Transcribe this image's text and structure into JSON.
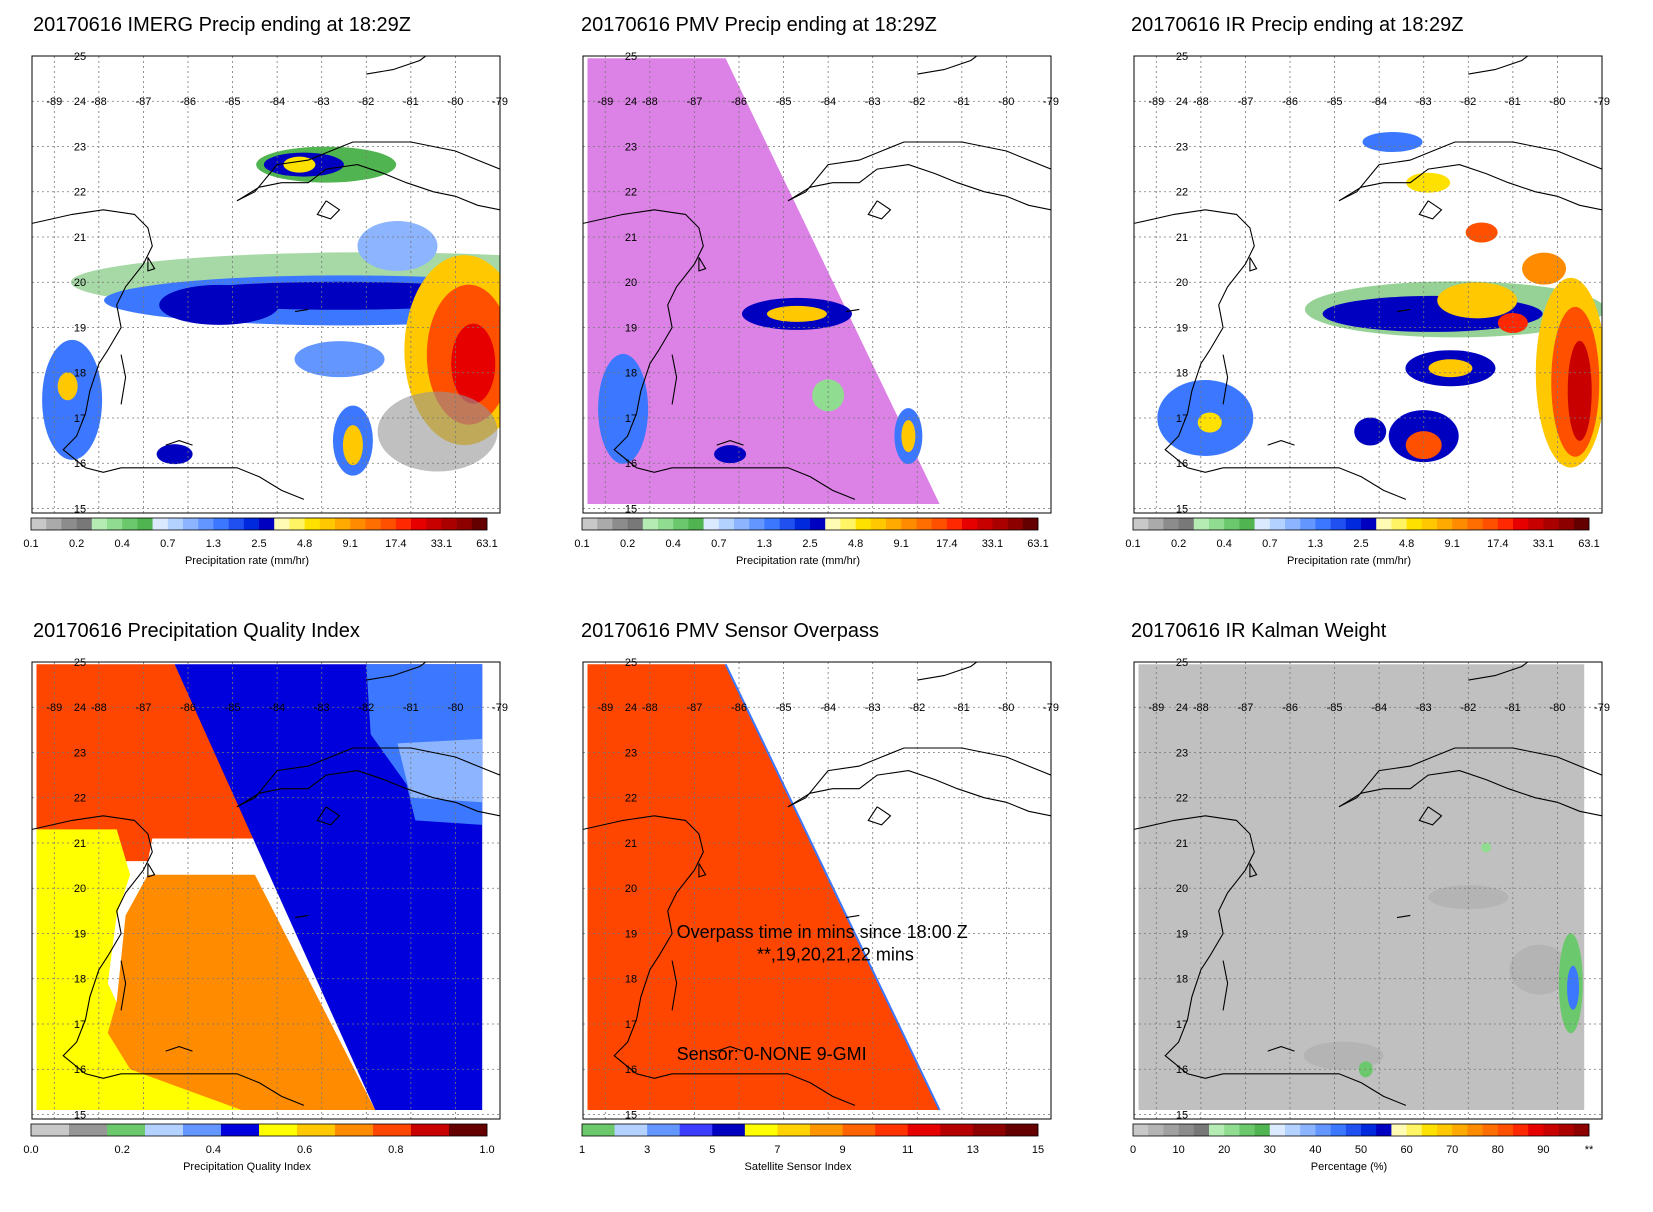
{
  "lat_labels": [
    "15",
    "16",
    "17",
    "18",
    "19",
    "20",
    "21",
    "22",
    "23",
    "24",
    "25"
  ],
  "lon_labels": [
    "-89",
    "-88",
    "-87",
    "-86",
    "-85",
    "-84",
    "-83",
    "-82",
    "-81",
    "-80",
    "-79"
  ],
  "panels": [
    {
      "id": "imerg",
      "title": "20170616 IMERG Precip ending at 18:29Z",
      "colorbar": {
        "label": "Precipitation rate (mm/hr)",
        "ticks": [
          "0.1",
          "0.2",
          "0.4",
          "0.7",
          "1.3",
          "2.5",
          "4.8",
          "9.1",
          "17.4",
          "33.1",
          "63.1"
        ],
        "colors": [
          "#c8c8c8",
          "#aaaaaa",
          "#8c8c8c",
          "#787878",
          "#b4ecb4",
          "#90dc90",
          "#6cc86c",
          "#50b450",
          "#dceaff",
          "#b4d2ff",
          "#8cb4ff",
          "#6496ff",
          "#3c78ff",
          "#2050f0",
          "#0028dc",
          "#0000c0",
          "#fffab4",
          "#fff564",
          "#ffe100",
          "#ffc800",
          "#ffaa00",
          "#ff8c00",
          "#ff6e00",
          "#ff5000",
          "#ff2800",
          "#e60000",
          "#c80000",
          "#aa0000",
          "#8c0000",
          "#640000"
        ]
      }
    },
    {
      "id": "pmv",
      "title": "20170616 PMV Precip ending at 18:29Z",
      "colorbar": {
        "label": "Precipitation rate (mm/hr)",
        "ticks": [
          "0.1",
          "0.2",
          "0.4",
          "0.7",
          "1.3",
          "2.5",
          "4.8",
          "9.1",
          "17.4",
          "33.1",
          "63.1"
        ],
        "colors": [
          "#c8c8c8",
          "#aaaaaa",
          "#8c8c8c",
          "#787878",
          "#b4ecb4",
          "#90dc90",
          "#6cc86c",
          "#50b450",
          "#dceaff",
          "#b4d2ff",
          "#8cb4ff",
          "#6496ff",
          "#3c78ff",
          "#2050f0",
          "#0028dc",
          "#0000c0",
          "#fffab4",
          "#fff564",
          "#ffe100",
          "#ffc800",
          "#ffaa00",
          "#ff8c00",
          "#ff6e00",
          "#ff5000",
          "#ff2800",
          "#e60000",
          "#c80000",
          "#aa0000",
          "#8c0000",
          "#640000"
        ]
      }
    },
    {
      "id": "ir",
      "title": "20170616 IR Precip ending at 18:29Z",
      "colorbar": {
        "label": "Precipitation rate (mm/hr)",
        "ticks": [
          "0.1",
          "0.2",
          "0.4",
          "0.7",
          "1.3",
          "2.5",
          "4.8",
          "9.1",
          "17.4",
          "33.1",
          "63.1"
        ],
        "colors": [
          "#c8c8c8",
          "#aaaaaa",
          "#8c8c8c",
          "#787878",
          "#b4ecb4",
          "#90dc90",
          "#6cc86c",
          "#50b450",
          "#dceaff",
          "#b4d2ff",
          "#8cb4ff",
          "#6496ff",
          "#3c78ff",
          "#2050f0",
          "#0028dc",
          "#0000c0",
          "#fffab4",
          "#fff564",
          "#ffe100",
          "#ffc800",
          "#ffaa00",
          "#ff8c00",
          "#ff6e00",
          "#ff5000",
          "#ff2800",
          "#e60000",
          "#c80000",
          "#aa0000",
          "#8c0000",
          "#640000"
        ]
      }
    },
    {
      "id": "pqi",
      "title": "20170616 Precipitation Quality Index",
      "colorbar": {
        "label": "Precipitation Quality Index",
        "ticks": [
          "0.0",
          "0.2",
          "0.4",
          "0.6",
          "0.8",
          "1.0"
        ],
        "colors": [
          "#c8c8c8",
          "#969696",
          "#6cc86c",
          "#b4d2ff",
          "#6496ff",
          "#0000dc",
          "#ffff00",
          "#ffc800",
          "#ff8c00",
          "#ff4600",
          "#c80000",
          "#640000"
        ]
      }
    },
    {
      "id": "overpass",
      "title": "20170616 PMV Sensor Overpass",
      "annotation": {
        "line1": "Overpass time in mins since 18:00 Z",
        "line2": "**,19,20,21,22 mins",
        "sensor": "Sensor:  0-NONE  9-GMI"
      },
      "colorbar": {
        "label": "Satellite Sensor Index",
        "ticks": [
          "1",
          "3",
          "5",
          "7",
          "9",
          "11",
          "13",
          "15"
        ],
        "colors": [
          "#6cc86c",
          "#b4d2ff",
          "#6496ff",
          "#3c3cff",
          "#0000c0",
          "#ffff00",
          "#ffd200",
          "#ff9600",
          "#ff6400",
          "#ff3200",
          "#e60000",
          "#b40000",
          "#8c0000",
          "#640000"
        ]
      }
    },
    {
      "id": "kalman",
      "title": "20170616 IR Kalman Weight",
      "colorbar": {
        "label": "Percentage (%)",
        "ticks": [
          "0",
          "10",
          "20",
          "30",
          "40",
          "50",
          "60",
          "70",
          "80",
          "90",
          "**"
        ],
        "colors": [
          "#c8c8c8",
          "#b4b4b4",
          "#a0a0a0",
          "#8c8c8c",
          "#787878",
          "#b4ecb4",
          "#90dc90",
          "#6cc86c",
          "#50b450",
          "#dceaff",
          "#b4d2ff",
          "#8cb4ff",
          "#6496ff",
          "#3c78ff",
          "#2050f0",
          "#0028dc",
          "#0000c0",
          "#fffab4",
          "#fff564",
          "#ffe100",
          "#ffc800",
          "#ffaa00",
          "#ff8c00",
          "#ff6e00",
          "#ff5000",
          "#ff2800",
          "#e60000",
          "#c80000",
          "#aa0000",
          "#8c0000"
        ]
      }
    }
  ]
}
